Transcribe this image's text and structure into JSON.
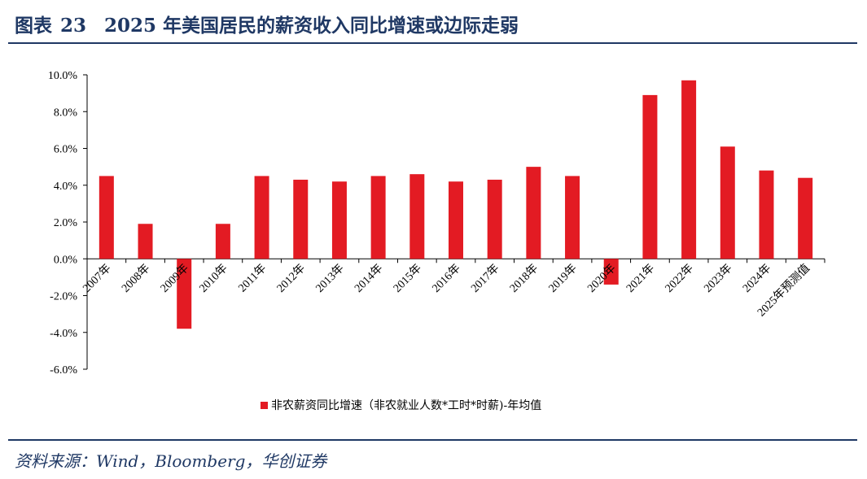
{
  "figure": {
    "label": "图表",
    "number": "23",
    "title": "2025 年美国居民的薪资收入同比增速或边际走弱"
  },
  "source": "资料来源：Wind，Bloomberg，华创证券",
  "colors": {
    "bar": "#e31b23",
    "title": "#1f3864",
    "axis": "#000000"
  },
  "chart_data": {
    "type": "bar",
    "categories": [
      "2007年",
      "2008年",
      "2009年",
      "2010年",
      "2011年",
      "2012年",
      "2013年",
      "2014年",
      "2015年",
      "2016年",
      "2017年",
      "2018年",
      "2019年",
      "2020年",
      "2021年",
      "2022年",
      "2023年",
      "2024年",
      "2025年预测值"
    ],
    "series": [
      {
        "name": "非农薪资同比增速（非农就业人数*工时*时薪)-年均值",
        "values": [
          4.5,
          1.9,
          -3.8,
          1.9,
          4.5,
          4.3,
          4.2,
          4.5,
          4.6,
          4.2,
          4.3,
          5.0,
          4.5,
          -1.4,
          8.9,
          9.7,
          6.1,
          4.8,
          4.4
        ]
      }
    ],
    "yticks": [
      "10.0%",
      "8.0%",
      "6.0%",
      "4.0%",
      "2.0%",
      "0.0%",
      "-2.0%",
      "-4.0%",
      "-6.0%"
    ],
    "ylim": [
      -6,
      10
    ],
    "legend_position": "bottom"
  }
}
